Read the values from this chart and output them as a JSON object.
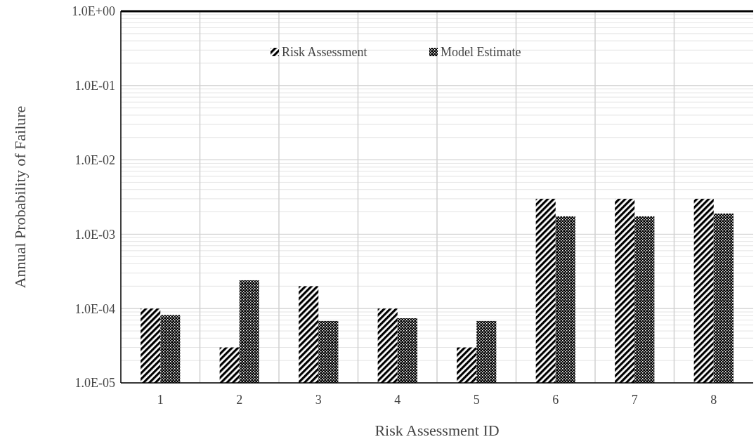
{
  "chart_data": {
    "type": "bar",
    "xlabel": "Risk Assessment ID",
    "ylabel": "Annual Probability of Failure",
    "categories": [
      "1",
      "2",
      "3",
      "4",
      "5",
      "6",
      "7",
      "8"
    ],
    "series": [
      {
        "name": "Risk Assessment",
        "color": "#000000",
        "values": [
          0.0001,
          3e-05,
          0.0002,
          0.0001,
          3e-05,
          0.003,
          0.003,
          0.003
        ]
      },
      {
        "name": "Model Estimate",
        "color": "#000000",
        "values": [
          8.2e-05,
          0.00024,
          6.8e-05,
          7.4e-05,
          6.8e-05,
          0.00174,
          0.00174,
          0.0019
        ]
      }
    ],
    "log": "y",
    "ylim": [
      1e-05,
      1
    ],
    "yticks": [
      {
        "value": 1e-05,
        "label": "1.0E-05"
      },
      {
        "value": 0.0001,
        "label": "1.0E-04"
      },
      {
        "value": 0.001,
        "label": "1.0E-03"
      },
      {
        "value": 0.01,
        "label": "1.0E-02"
      },
      {
        "value": 0.1,
        "label": "1.0E-01"
      },
      {
        "value": 1,
        "label": "1.0E+00"
      }
    ],
    "grid": true,
    "legend": "top"
  }
}
